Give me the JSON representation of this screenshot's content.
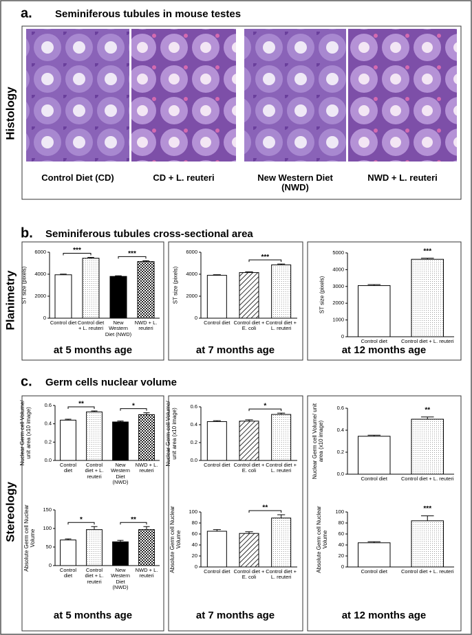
{
  "panel_a": {
    "label": "a.",
    "title": "Seminiferous tubules in mouse testes",
    "side_label": "Histology",
    "captions": [
      "Control Diet (CD)",
      "CD + L. reuteri",
      "New Western Diet (NWD)",
      "NWD + L. reuteri"
    ]
  },
  "panel_b": {
    "label": "b.",
    "title": "Seminiferous tubules cross-sectional area",
    "side_label": "Planimetry",
    "ages": [
      "at 5 months age",
      "at 7 months age",
      "at 12 months age"
    ]
  },
  "panel_c": {
    "label": "c.",
    "title": "Germ cells nuclear volume",
    "side_label": "Stereology",
    "ages": [
      "at 5 months age",
      "at 7 months age",
      "at 12 months age"
    ]
  },
  "chart_data": [
    {
      "type": "bar",
      "y_label": "ST size (pixels)",
      "categories": [
        "Control diet",
        "Control diet + L. reuteri",
        "New Western Diet (NWD)",
        "NWD + L. reuteri"
      ],
      "values": [
        3950,
        5450,
        3800,
        5150
      ],
      "errors": [
        60,
        80,
        60,
        80
      ],
      "patterns": [
        "none",
        "dots",
        "solid",
        "checker"
      ],
      "ylim": [
        0,
        6000
      ],
      "yticks": [
        0,
        2000,
        4000,
        6000
      ],
      "annotations": [
        {
          "text": "***",
          "from": 0,
          "to": 1
        },
        {
          "text": "***",
          "from": 2,
          "to": 3
        }
      ]
    },
    {
      "type": "bar",
      "y_label": "ST size (pixels)",
      "categories": [
        "Control diet",
        "Control diet + E. coli",
        "Control diet + L. reuteri"
      ],
      "values": [
        3900,
        4150,
        4850
      ],
      "errors": [
        50,
        60,
        80
      ],
      "patterns": [
        "none",
        "hatch",
        "dots"
      ],
      "ylim": [
        0,
        6000
      ],
      "yticks": [
        0,
        2000,
        4000,
        6000
      ],
      "annotations": [
        {
          "text": "***",
          "from": 1,
          "to": 2
        }
      ]
    },
    {
      "type": "bar",
      "y_label": "ST size (pixels)",
      "categories": [
        "Control diet",
        "Control diet + L. reuteri"
      ],
      "values": [
        3050,
        4620
      ],
      "errors": [
        60,
        60
      ],
      "patterns": [
        "none",
        "dots"
      ],
      "ylim": [
        0,
        5000
      ],
      "yticks": [
        0,
        1000,
        2000,
        3000,
        4000,
        5000
      ],
      "annotations": [
        {
          "text": "***",
          "from": 1,
          "to": 1
        }
      ]
    },
    {
      "type": "bar",
      "y_label": "Nuclear Germ cell Volume/ unit area (x10 image)",
      "categories": [
        "Control diet",
        "Control diet + L. reuteri",
        "New Western Diet (NWD)",
        "NWD + L. reuteri"
      ],
      "values": [
        0.44,
        0.53,
        0.42,
        0.5
      ],
      "errors": [
        0.01,
        0.01,
        0.01,
        0.02
      ],
      "patterns": [
        "none",
        "dots",
        "solid",
        "checker"
      ],
      "ylim": [
        0,
        0.6
      ],
      "yticks": [
        {
          "value": 0,
          "label": "0.0"
        },
        0.2,
        0.4,
        0.6
      ],
      "annotations": [
        {
          "text": "**",
          "from": 0,
          "to": 1
        },
        {
          "text": "*",
          "from": 2,
          "to": 3
        }
      ]
    },
    {
      "type": "bar",
      "y_label": "Absolute Germ cell Nuclear Volume",
      "categories": [
        "Control diet",
        "Control diet + L. reuteri",
        "New Western Diet (NWD)",
        "NWD + L. reuteri"
      ],
      "values": [
        69,
        97,
        64,
        97
      ],
      "errors": [
        3,
        8,
        4,
        8
      ],
      "patterns": [
        "none",
        "dots",
        "solid",
        "checker"
      ],
      "ylim": [
        0,
        150
      ],
      "yticks": [
        0,
        50,
        100,
        150
      ],
      "annotations": [
        {
          "text": "*",
          "from": 0,
          "to": 1
        },
        {
          "text": "**",
          "from": 2,
          "to": 3
        }
      ]
    },
    {
      "type": "bar",
      "y_label": "Nuclear Germ cell Volume/ unit area (x10 image)",
      "categories": [
        "Control diet",
        "Control diet + E. coli",
        "Control diet + L. reuteri"
      ],
      "values": [
        0.435,
        0.44,
        0.515
      ],
      "errors": [
        0.01,
        0.015,
        0.015
      ],
      "patterns": [
        "none",
        "hatch",
        "dots"
      ],
      "ylim": [
        0,
        0.6
      ],
      "yticks": [
        {
          "value": 0,
          "label": "0.0"
        },
        0.2,
        0.4,
        0.6
      ],
      "annotations": [
        {
          "text": "*",
          "from": 1,
          "to": 2
        }
      ]
    },
    {
      "type": "bar",
      "y_label": "Absolute Germ cell Nuclear Volume",
      "categories": [
        "Control diet",
        "Control diet + E. coli",
        "Control diet + L. reuteri"
      ],
      "values": [
        65,
        61,
        89
      ],
      "errors": [
        3,
        3,
        6
      ],
      "patterns": [
        "none",
        "hatch",
        "dots"
      ],
      "ylim": [
        0,
        100
      ],
      "yticks": [
        0,
        20,
        40,
        60,
        80,
        100
      ],
      "annotations": [
        {
          "text": "**",
          "from": 1,
          "to": 2
        }
      ]
    },
    {
      "type": "bar",
      "y_label": "Nuclear Germ cell Volume/ unit area (x10 image)",
      "categories": [
        "Control diet",
        "Control diet + L. reuteri"
      ],
      "values": [
        0.345,
        0.5
      ],
      "errors": [
        0.01,
        0.02
      ],
      "patterns": [
        "none",
        "dots"
      ],
      "ylim": [
        0,
        0.6
      ],
      "yticks": [
        {
          "value": 0,
          "label": "0.0"
        },
        0.2,
        0.4,
        0.6
      ],
      "annotations": [
        {
          "text": "**",
          "from": 1,
          "to": 1
        }
      ]
    },
    {
      "type": "bar",
      "y_label": "Absolute Germ cell Nuclear Volume",
      "categories": [
        "Control diet",
        "Control diet + L. reuteri"
      ],
      "values": [
        44,
        84
      ],
      "errors": [
        2,
        9
      ],
      "patterns": [
        "none",
        "dots"
      ],
      "ylim": [
        0,
        100
      ],
      "yticks": [
        0,
        20,
        40,
        60,
        80,
        100
      ],
      "annotations": [
        {
          "text": "***",
          "from": 1,
          "to": 1
        }
      ]
    }
  ]
}
